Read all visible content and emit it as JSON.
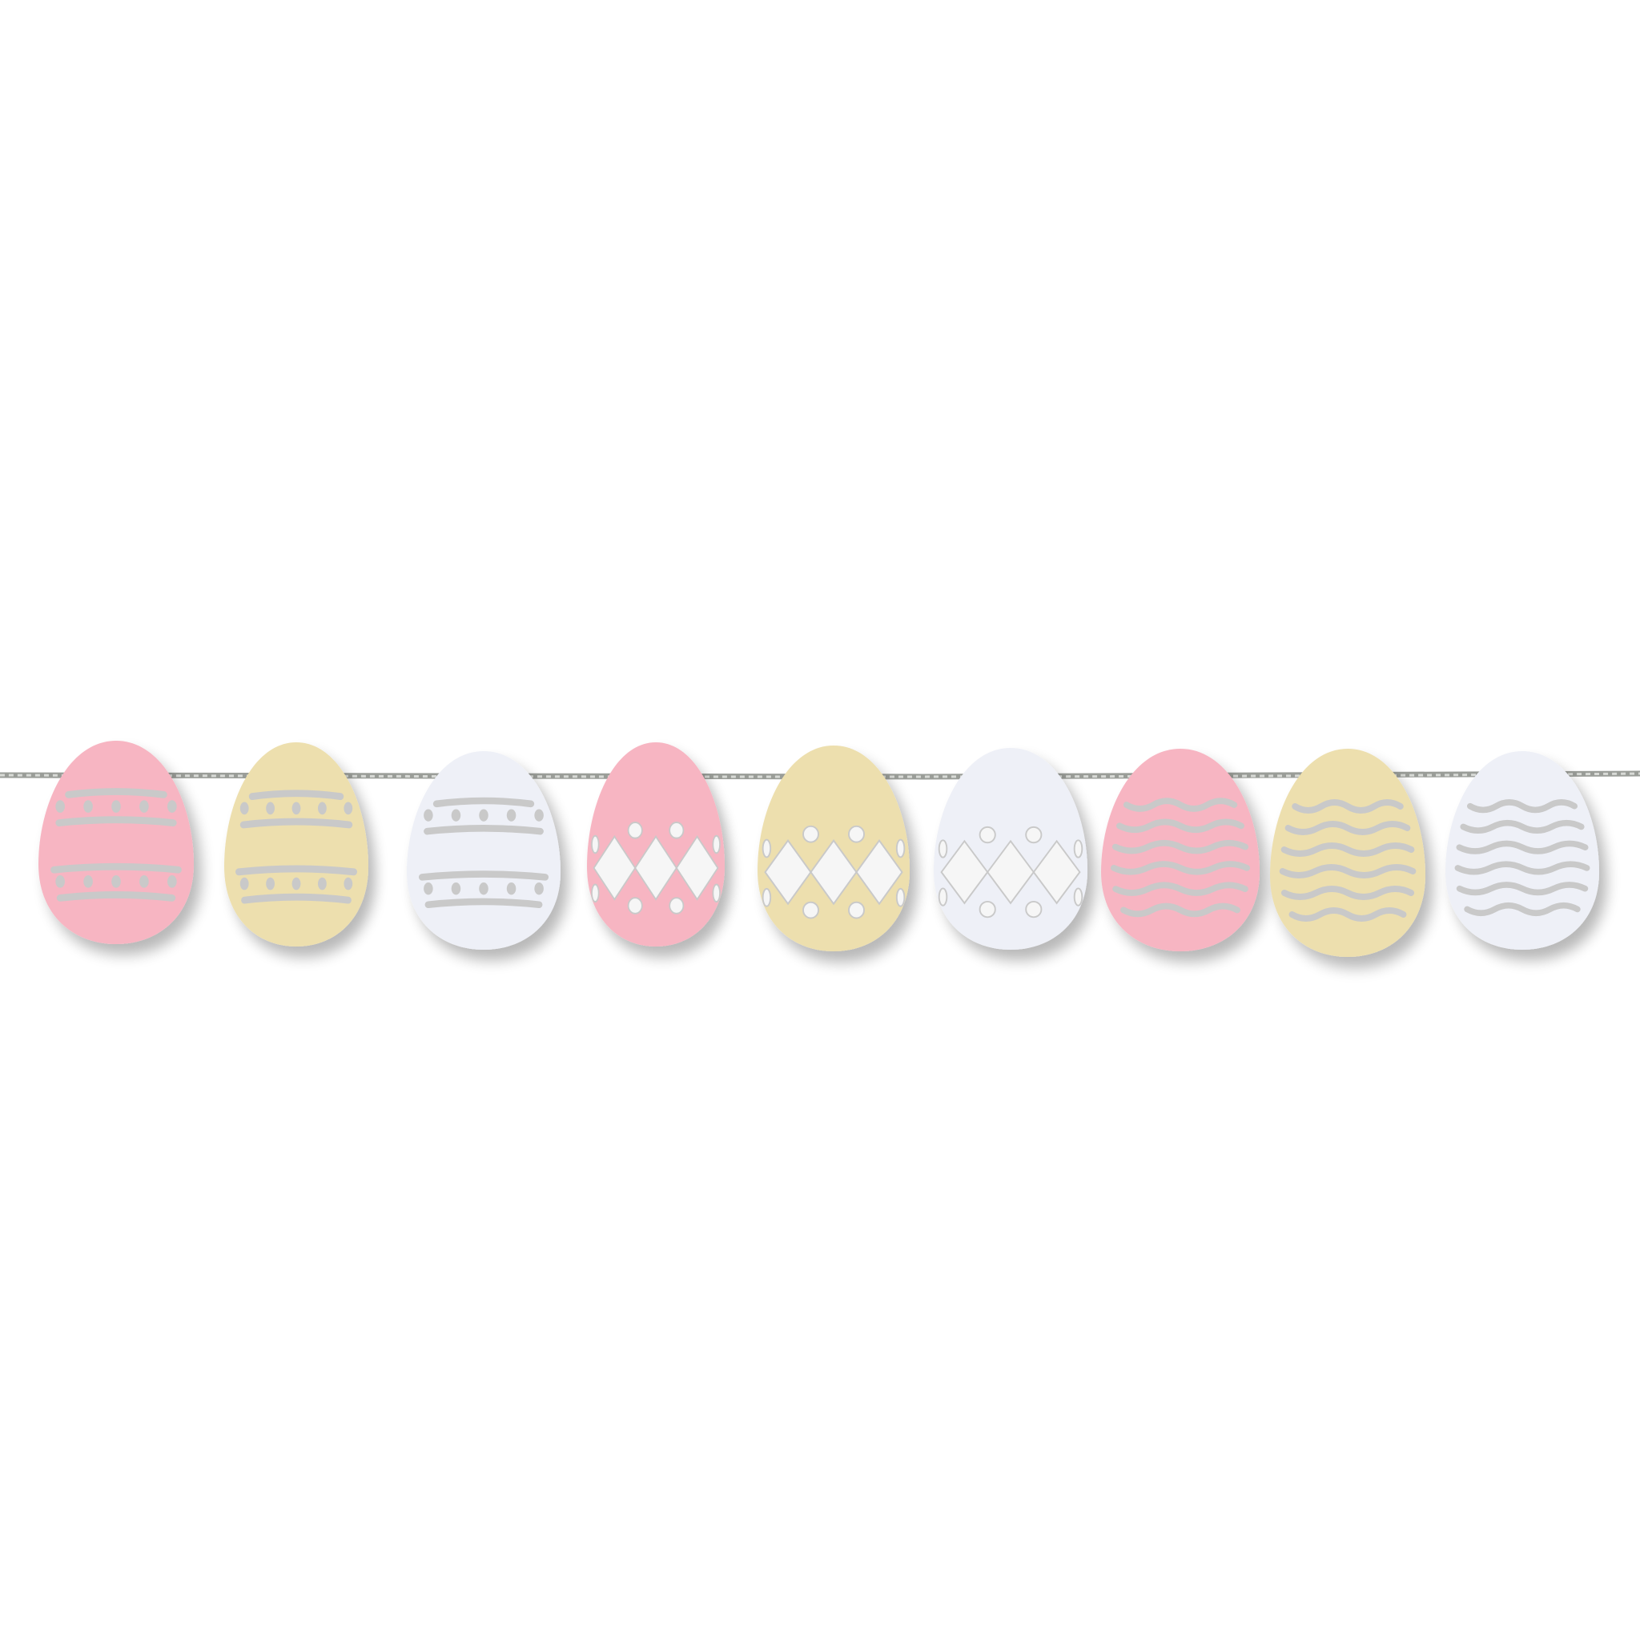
{
  "scene": {
    "background": "#ffffff",
    "wire_color": "#9a9d98",
    "cutout_shadow_color": "#c9c9c9",
    "cutout_open_color": "#f6f6f6"
  },
  "eggs": [
    {
      "color": "#f7b5c2",
      "pattern": "dotted-bands"
    },
    {
      "color": "#eddfae",
      "pattern": "dotted-bands"
    },
    {
      "color": "#eef0f7",
      "pattern": "dotted-bands"
    },
    {
      "color": "#f7b5c2",
      "pattern": "diamonds"
    },
    {
      "color": "#eddfae",
      "pattern": "diamonds"
    },
    {
      "color": "#eef0f7",
      "pattern": "diamonds"
    },
    {
      "color": "#f7b5c2",
      "pattern": "waves"
    },
    {
      "color": "#eddfae",
      "pattern": "waves"
    },
    {
      "color": "#eef0f7",
      "pattern": "waves"
    }
  ]
}
